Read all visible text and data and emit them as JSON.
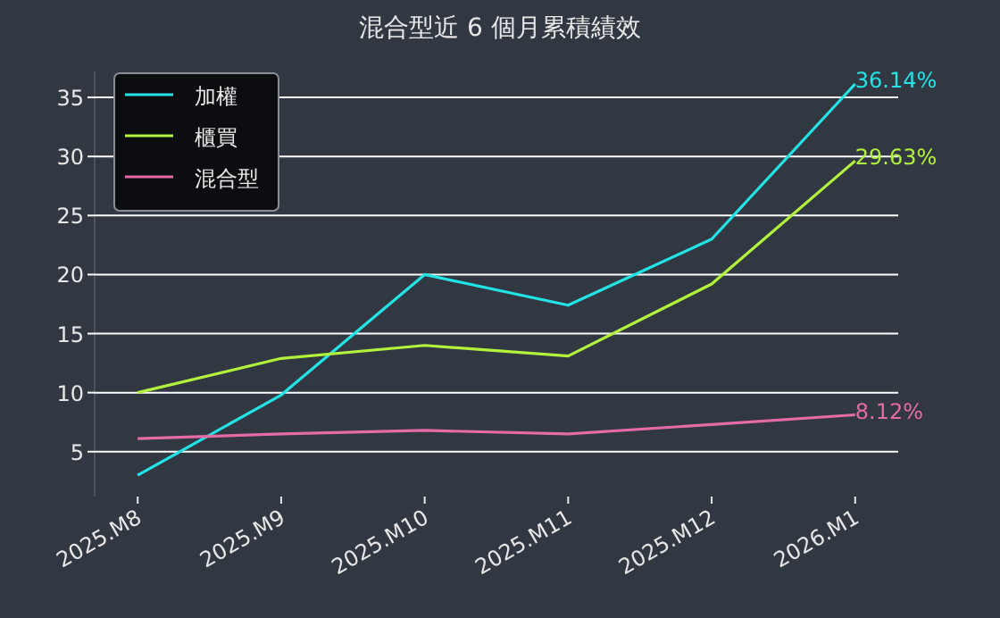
{
  "chart_data": {
    "type": "line",
    "title": "混合型近 6 個月累積績效",
    "categories": [
      "2025.M8",
      "2025.M9",
      "2025.M10",
      "2025.M11",
      "2025.M12",
      "2026.M1"
    ],
    "series": [
      {
        "name": "加權",
        "color": "#22e3e6",
        "values": [
          3.0,
          9.8,
          20.0,
          17.4,
          23.0,
          36.14
        ],
        "value_labels": [
          null,
          null,
          null,
          null,
          null,
          "36.14%"
        ]
      },
      {
        "name": "櫃買",
        "color": "#b3f23c",
        "values": [
          10.0,
          12.9,
          14.0,
          13.1,
          19.2,
          29.63
        ],
        "value_labels": [
          null,
          null,
          null,
          null,
          null,
          "29.63%"
        ]
      },
      {
        "name": "混合型",
        "color": "#e66aa6",
        "values": [
          6.1,
          6.5,
          6.8,
          6.5,
          7.3,
          8.12
        ],
        "value_labels": [
          null,
          null,
          null,
          null,
          null,
          "8.12%"
        ]
      }
    ],
    "ylim": [
      1.2,
      37.2
    ],
    "yticks": [
      5,
      10,
      15,
      20,
      25,
      30,
      35
    ],
    "grid": "y",
    "legend": "top left",
    "marker": "none",
    "line_style": "solid"
  }
}
